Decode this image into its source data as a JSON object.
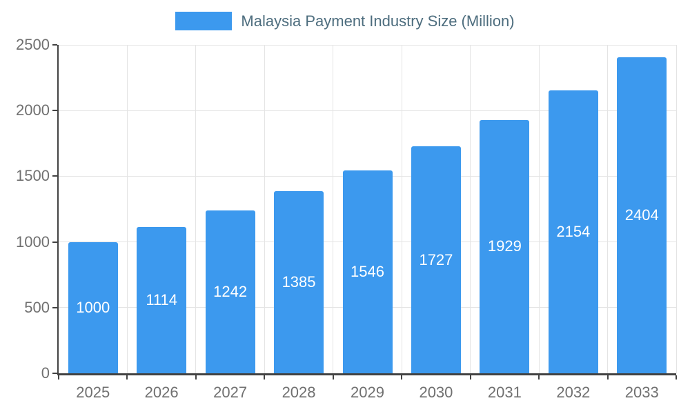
{
  "legend": {
    "label": "Malaysia Payment Industry Size (Million)"
  },
  "chart_data": {
    "type": "bar",
    "title": "Malaysia Payment Industry Size (Million)",
    "categories": [
      "2025",
      "2026",
      "2027",
      "2028",
      "2029",
      "2030",
      "2031",
      "2032",
      "2033"
    ],
    "values": [
      1000,
      1114,
      1242,
      1385,
      1546,
      1727,
      1929,
      2154,
      2404
    ],
    "xlabel": "",
    "ylabel": "",
    "ylim": [
      0,
      2500
    ],
    "yticks": [
      0,
      500,
      1000,
      1500,
      2000,
      2500
    ],
    "grid": true,
    "legend_position": "top",
    "bar_color": "#3C99EE",
    "bar_label_color": "#FFFFFF",
    "axis_color": "#424242",
    "grid_color": "#E4E4E4",
    "tick_label_color": "#707070",
    "legend_text_color": "#4D6D7E"
  }
}
